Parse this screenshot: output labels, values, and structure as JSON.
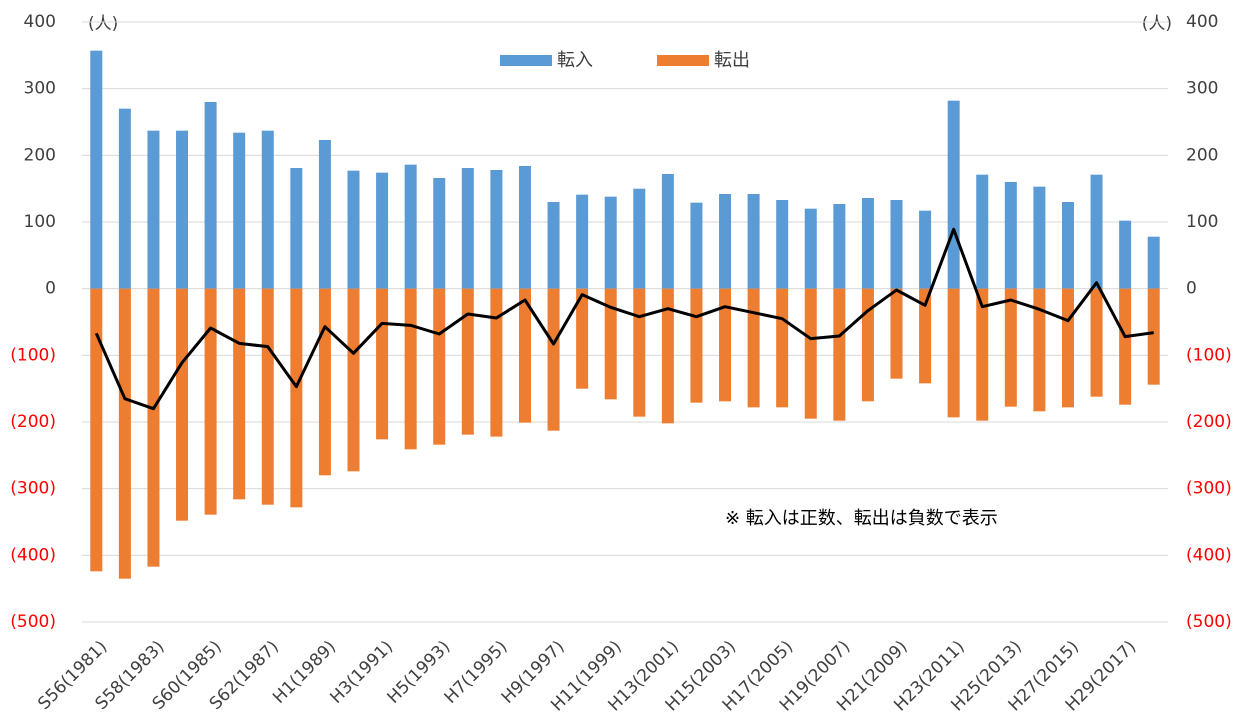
{
  "chart_data": {
    "type": "bar",
    "unit_label": "(人)",
    "annotation": "※ 転入は正数、転出は負数で表示",
    "categories": [
      "S56(1981)",
      null,
      "S58(1983)",
      null,
      "S60(1985)",
      null,
      "S62(1987)",
      null,
      "H1(1989)",
      null,
      "H3(1991)",
      null,
      "H5(1993)",
      null,
      "H7(1995)",
      null,
      "H9(1997)",
      null,
      "H11(1999)",
      null,
      "H13(2001)",
      null,
      "H15(2003)",
      null,
      "H17(2005)",
      null,
      "H19(2007)",
      null,
      "H21(2009)",
      null,
      "H23(2011)",
      null,
      "H25(2013)",
      null,
      "H27(2015)",
      null,
      "H29(2017)",
      null
    ],
    "series": [
      {
        "name": "転入",
        "color": "#5b9bd5",
        "values": [
          357,
          270,
          237,
          237,
          280,
          234,
          237,
          181,
          223,
          177,
          174,
          186,
          166,
          181,
          178,
          184,
          130,
          141,
          138,
          150,
          172,
          129,
          142,
          142,
          133,
          120,
          127,
          136,
          133,
          117,
          282,
          171,
          160,
          153,
          130,
          171,
          102,
          78
        ]
      },
      {
        "name": "転出",
        "color": "#ed7d31",
        "values": [
          -424,
          -435,
          -417,
          -348,
          -339,
          -316,
          -324,
          -328,
          -280,
          -274,
          -226,
          -241,
          -234,
          -219,
          -222,
          -201,
          -213,
          -150,
          -166,
          -192,
          -202,
          -171,
          -169,
          -178,
          -178,
          -195,
          -198,
          -169,
          -135,
          -142,
          -193,
          -198,
          -177,
          -184,
          -178,
          -162,
          -174,
          -144
        ]
      }
    ],
    "line": {
      "color": "#000000",
      "values": [
        -67,
        -165,
        -180,
        -111,
        -59,
        -82,
        -87,
        -147,
        -57,
        -97,
        -52,
        -55,
        -68,
        -38,
        -44,
        -17,
        -83,
        -9,
        -28,
        -42,
        -30,
        -42,
        -27,
        -36,
        -45,
        -75,
        -71,
        -33,
        -2,
        -25,
        89,
        -27,
        -17,
        -31,
        -48,
        9,
        -72,
        -66
      ]
    },
    "ylim": [
      -500,
      400
    ],
    "yticks": [
      400,
      300,
      200,
      100,
      0,
      {
        "value": -100,
        "label": "(100)"
      },
      {
        "value": -200,
        "label": "(200)"
      },
      {
        "value": -300,
        "label": "(300)"
      },
      {
        "value": -400,
        "label": "(400)"
      },
      {
        "value": -500,
        "label": "(500)"
      }
    ],
    "y2lim": [
      -500,
      400
    ],
    "y2ticks": [
      400,
      300,
      200,
      100,
      0,
      {
        "value": -100,
        "label": "(100)"
      },
      {
        "value": -200,
        "label": "(200)"
      },
      {
        "value": -300,
        "label": "(300)"
      },
      {
        "value": -400,
        "label": "(400)"
      },
      {
        "value": -500,
        "label": "(500)"
      }
    ],
    "negative_tick_color": "#ff0000",
    "grid": true
  }
}
